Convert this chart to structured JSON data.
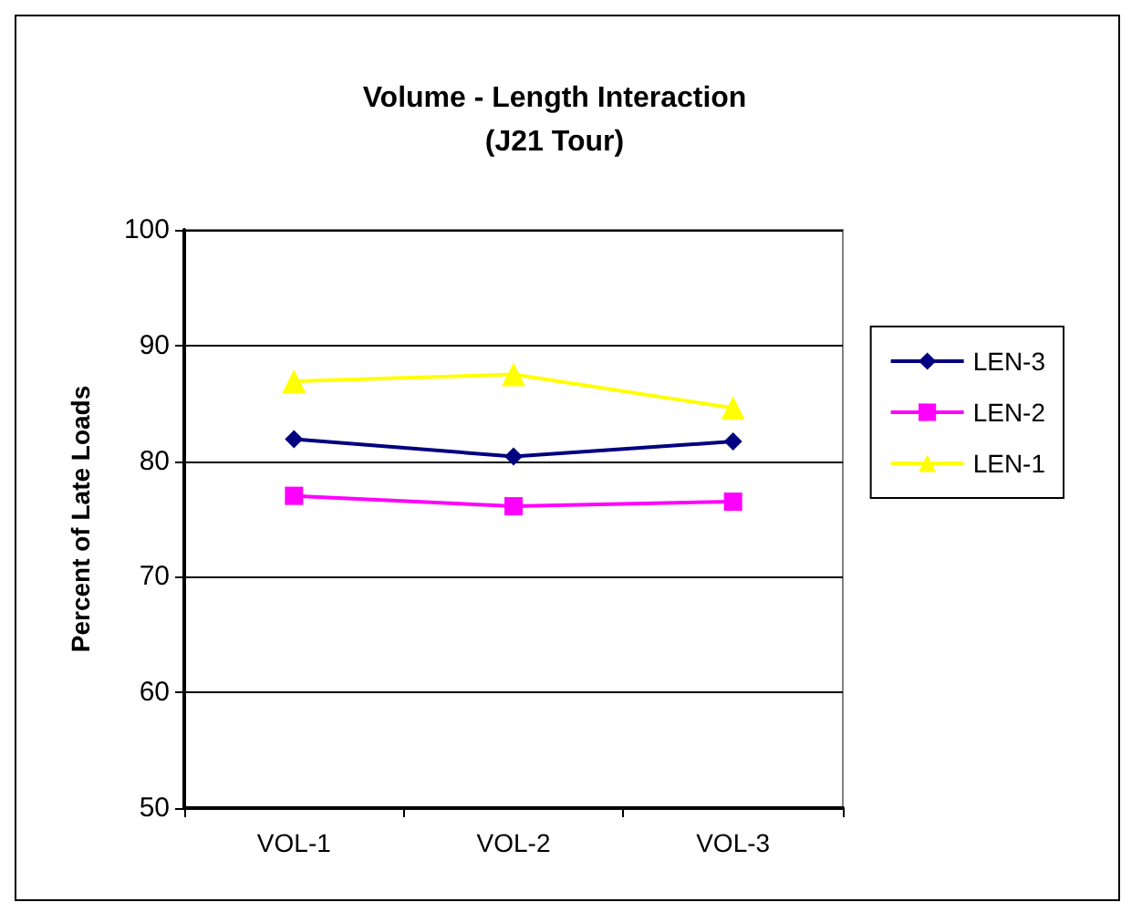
{
  "chart_data": {
    "type": "line",
    "title": "Volume - Length Interaction\n(J21 Tour)",
    "ylabel": "Percent of Late Loads",
    "categories": [
      "VOL-1",
      "VOL-2",
      "VOL-3"
    ],
    "series": [
      {
        "name": "LEN-3",
        "color": "#000080",
        "marker": "diamond",
        "values": [
          81.9,
          80.4,
          81.7
        ]
      },
      {
        "name": "LEN-2",
        "color": "#ff00ff",
        "marker": "square",
        "values": [
          77.0,
          76.1,
          76.5
        ]
      },
      {
        "name": "LEN-1",
        "color": "#ffff00",
        "marker": "triangle",
        "values": [
          86.9,
          87.5,
          84.6
        ]
      }
    ],
    "ylim": [
      50,
      100
    ],
    "yticks": [
      50,
      60,
      70,
      80,
      90,
      100
    ],
    "grid": "y",
    "legend": "right"
  }
}
